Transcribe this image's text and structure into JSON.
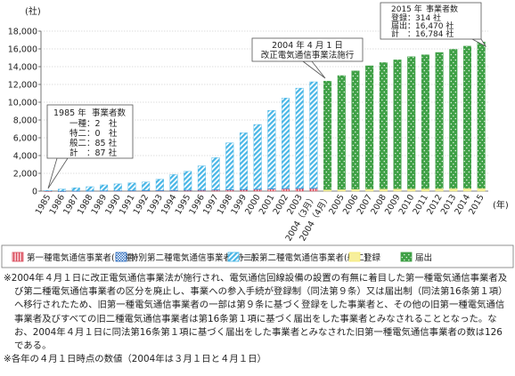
{
  "chart_data": {
    "type": "bar",
    "y_unit": "(社)",
    "x_unit": "(年)",
    "ylim": [
      0,
      18000
    ],
    "y_ticks": [
      "0",
      "2,000",
      "4,000",
      "6,000",
      "8,000",
      "10,000",
      "12,000",
      "14,000",
      "16,000",
      "18,000"
    ],
    "categories": [
      "1985",
      "1986",
      "1987",
      "1988",
      "1989",
      "1990",
      "1991",
      "1992",
      "1993",
      "1994",
      "1995",
      "1996",
      "1997",
      "1998",
      "1999",
      "2000",
      "2001",
      "2002",
      "2003",
      "2004（3月）",
      "2004（4月）",
      "2005",
      "2006",
      "2007",
      "2008",
      "2009",
      "2010",
      "2011",
      "2012",
      "2013",
      "2014",
      "2015"
    ],
    "series": [
      {
        "name": "第一種電気通信事業者(一種)",
        "color": "#d94a5a",
        "values": [
          2,
          7,
          21,
          31,
          40,
          50,
          60,
          70,
          80,
          90,
          110,
          130,
          150,
          170,
          190,
          230,
          270,
          300,
          320,
          330,
          0,
          0,
          0,
          0,
          0,
          0,
          0,
          0,
          0,
          0,
          0,
          0
        ]
      },
      {
        "name": "特別第二種電気通信事業者(特二)",
        "color": "#2f6fc0",
        "values": [
          0,
          2,
          9,
          10,
          11,
          12,
          12,
          12,
          12,
          12,
          12,
          13,
          14,
          14,
          16,
          16,
          17,
          18,
          18,
          18,
          0,
          0,
          0,
          0,
          0,
          0,
          0,
          0,
          0,
          0,
          0,
          0
        ]
      },
      {
        "name": "一般第二種電気通信事業者(般二)",
        "color": "#48b6e6",
        "values": [
          85,
          220,
          350,
          460,
          650,
          750,
          850,
          940,
          1250,
          1760,
          2100,
          2700,
          3600,
          5250,
          6350,
          7250,
          8800,
          10150,
          11250,
          11950,
          0,
          0,
          0,
          0,
          0,
          0,
          0,
          0,
          0,
          0,
          0,
          0
        ]
      },
      {
        "name": "登録",
        "color": "#f5ea70",
        "values": [
          0,
          0,
          0,
          0,
          0,
          0,
          0,
          0,
          0,
          0,
          0,
          0,
          0,
          0,
          0,
          0,
          0,
          0,
          0,
          0,
          180,
          200,
          230,
          250,
          260,
          270,
          280,
          290,
          300,
          305,
          310,
          314
        ]
      },
      {
        "name": "届出",
        "color": "#3fa046",
        "values": [
          0,
          0,
          0,
          0,
          0,
          0,
          0,
          0,
          0,
          0,
          0,
          0,
          0,
          0,
          0,
          0,
          0,
          0,
          0,
          0,
          12200,
          12800,
          13300,
          13850,
          14200,
          14500,
          14850,
          15050,
          15300,
          15650,
          16000,
          16470
        ]
      }
    ],
    "callouts": {
      "c1985": {
        "year": "1985 年",
        "head": "事業者数",
        "rows": [
          "一種：2　社",
          "特二：0　社",
          "般二：85 社",
          "計　：87 社"
        ]
      },
      "c2004": {
        "line1": "2004 年 4 月 1 日",
        "line2": "改正電気通信事業法施行"
      },
      "c2015": {
        "year": "2015 年",
        "head": "事業者数",
        "rows": [
          "登録：314 社",
          "届出：16,470 社",
          "計　：16,784 社"
        ]
      }
    }
  },
  "notes": {
    "main": "※2004年４月１日に改正電気通信事業法が施行され、電気通信回線設備の設置の有無に着目した第一種電気通信事業者及び第二種電気通信事業者の区分を廃止し、事業への参入手続が登録制（同法第９条）又は届出制（同法第16条第１項）へ移行されたため、旧第一種電気通信事業者の一部は第９条に基づく登録をした事業者と、その他の旧第一種電気通信事業者及びすべての旧二種電気通信事業者は第16条第１項に基づく届出をした事業者とみなされることとなった。なお、2004年４月１日に同法第16条第１項に基づく届出をした事業者とみなされた旧第一種電気通信事業者の数は126である。",
    "sub": "※各年の４月１日時点の数値（2004年は３月１日と４月１日）"
  }
}
